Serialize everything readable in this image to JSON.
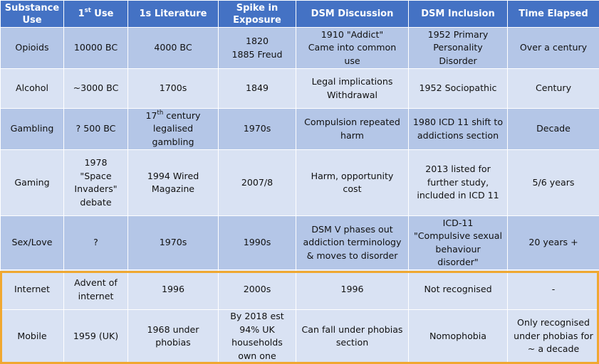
{
  "table": {
    "headers": [
      {
        "parts": [
          "Substance",
          "Use"
        ]
      },
      {
        "parts": [
          "1"
        ],
        "sup": "st",
        "after": " Use"
      },
      {
        "parts": [
          "1s Literature"
        ]
      },
      {
        "parts": [
          "Spike in",
          "Exposure"
        ]
      },
      {
        "parts": [
          "DSM Discussion"
        ]
      },
      {
        "parts": [
          "DSM Inclusion"
        ]
      },
      {
        "parts": [
          "Time Elapsed"
        ]
      }
    ],
    "rows": [
      {
        "name": "opioids",
        "cells": [
          [
            "Opioids"
          ],
          [
            "10000 BC"
          ],
          [
            "4000 BC"
          ],
          [
            "1820",
            "1885 Freud"
          ],
          [
            "1910 \"Addict\"",
            "Came into common",
            "use"
          ],
          [
            "1952 Primary",
            "Personality",
            "Disorder"
          ],
          [
            "Over a century"
          ]
        ]
      },
      {
        "name": "alcohol",
        "cells": [
          [
            "Alcohol"
          ],
          [
            "~3000 BC"
          ],
          [
            "1700s"
          ],
          [
            "1849"
          ],
          [
            "Legal implications",
            "Withdrawal"
          ],
          [
            "1952 Sociopathic"
          ],
          [
            "Century"
          ]
        ]
      },
      {
        "name": "gambling",
        "cells": [
          [
            "Gambling"
          ],
          [
            "? 500 BC"
          ],
          [
            "17th century",
            "legalised",
            "gambling"
          ],
          [
            "1970s"
          ],
          [
            "Compulsion repeated",
            "harm"
          ],
          [
            "1980 ICD 11 shift to",
            "addictions section"
          ],
          [
            "Decade"
          ]
        ]
      },
      {
        "name": "gaming",
        "cells": [
          [
            "Gaming"
          ],
          [
            "1978",
            "\"Space",
            "Invaders\"",
            "debate"
          ],
          [
            "1994 Wired",
            "Magazine"
          ],
          [
            "2007/8"
          ],
          [
            "Harm, opportunity",
            "cost"
          ],
          [
            "2013 listed for",
            "further study,",
            "included in ICD 11"
          ],
          [
            "5/6 years"
          ]
        ]
      },
      {
        "name": "sex-love",
        "cells": [
          [
            "Sex/Love"
          ],
          [
            "?"
          ],
          [
            "1970s"
          ],
          [
            "1990s"
          ],
          [
            "DSM V phases out",
            "addiction terminology",
            "& moves to disorder"
          ],
          [
            "ICD-11",
            "\"Compulsive sexual",
            "behaviour",
            "disorder\""
          ],
          [
            "20 years +"
          ]
        ]
      },
      {
        "name": "internet",
        "cells": [
          [
            "Internet"
          ],
          [
            "Advent of",
            "internet"
          ],
          [
            "1996"
          ],
          [
            "2000s"
          ],
          [
            "1996"
          ],
          [
            "Not recognised"
          ],
          [
            "-"
          ]
        ]
      },
      {
        "name": "mobile",
        "cells": [
          [
            "Mobile"
          ],
          [
            "1959 (UK)"
          ],
          [
            "1968 under",
            "phobias"
          ],
          [
            "By 2018 est",
            "94% UK",
            "households",
            "own one"
          ],
          [
            "Can fall under phobias",
            "section"
          ],
          [
            "Nomophobia"
          ],
          [
            "Only recognised",
            "under phobias for",
            "~ a decade"
          ]
        ]
      }
    ]
  },
  "colors": {
    "header_bg": "#4472c4",
    "row_dark": "#b4c6e7",
    "row_light": "#d9e2f3",
    "highlight_border": "#f0a830"
  }
}
